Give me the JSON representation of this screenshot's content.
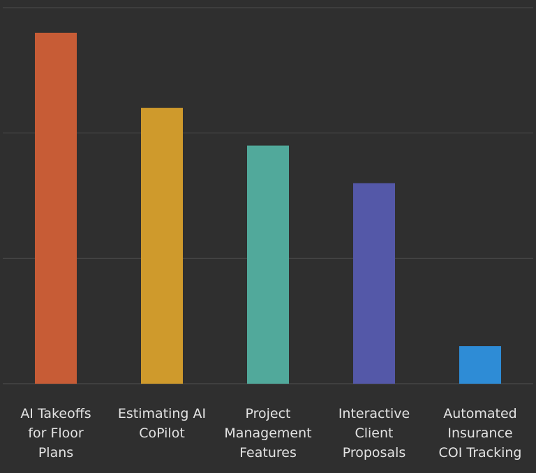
{
  "chart_data": {
    "type": "bar",
    "title": "",
    "xlabel": "",
    "ylabel": "",
    "categories": [
      [
        "AI Takeoffs",
        "for Floor",
        "Plans"
      ],
      [
        "Estimating AI",
        "CoPilot"
      ],
      [
        "Project",
        "Management",
        "Features"
      ],
      [
        "Interactive",
        "Client",
        "Proposals"
      ],
      [
        "Automated",
        "Insurance",
        "COI Tracking"
      ]
    ],
    "values": [
      2.8,
      2.2,
      1.9,
      1.6,
      0.3
    ],
    "ylim": [
      0,
      3
    ],
    "yticks": [
      0,
      1,
      2,
      3
    ],
    "colors": [
      "#c75c36",
      "#cf9a2c",
      "#51a99b",
      "#5458a8",
      "#2e8cd6"
    ],
    "grid": true,
    "show_y_tick_labels": false,
    "legend": "none"
  },
  "colors": {
    "background": "#2f2f2f",
    "grid": "#474747",
    "text": "#e3e3e3"
  }
}
